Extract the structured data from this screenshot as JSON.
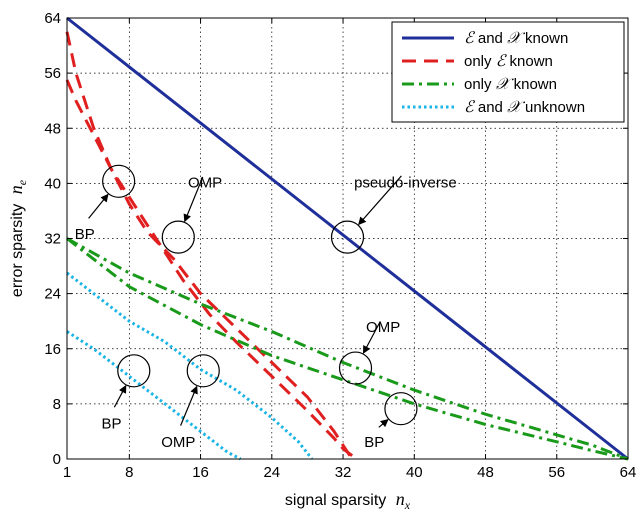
{
  "chart_data": {
    "type": "line",
    "xlabel": "signal sparsity",
    "xlabel_symbol": "n",
    "xlabel_sub": "x",
    "ylabel": "error sparsity",
    "ylabel_symbol": "n",
    "ylabel_sub": "e",
    "xlim": [
      1,
      64
    ],
    "ylim": [
      0,
      64
    ],
    "xticks": [
      1,
      8,
      16,
      24,
      32,
      40,
      48,
      56,
      64
    ],
    "yticks": [
      0,
      8,
      16,
      24,
      32,
      40,
      48,
      56,
      64
    ],
    "grid": true,
    "legend_position": "top-right",
    "series": [
      {
        "name": "E and X known",
        "legend_parts": [
          "ℰ",
          " and ",
          "𝒳",
          " known"
        ],
        "color": "#1f2f9a",
        "style": "solid",
        "curves": [
          [
            [
              1,
              64
            ],
            [
              64,
              0
            ]
          ]
        ]
      },
      {
        "name": "only E known",
        "legend_parts": [
          "only ",
          "ℰ",
          " known"
        ],
        "color": "#e02020",
        "style": "dashed",
        "curves": [
          [
            [
              1,
              62
            ],
            [
              2,
              56
            ],
            [
              4,
              48
            ],
            [
              6,
              42
            ],
            [
              8,
              37
            ],
            [
              10,
              33
            ],
            [
              13,
              29
            ],
            [
              16,
              24
            ],
            [
              20,
              19
            ],
            [
              24,
              14
            ],
            [
              28,
              9
            ],
            [
              31,
              4
            ],
            [
              32,
              2
            ],
            [
              33,
              0
            ]
          ],
          [
            [
              1,
              55
            ],
            [
              2,
              52
            ],
            [
              4,
              47
            ],
            [
              6,
              42
            ],
            [
              8,
              38
            ],
            [
              10,
              34
            ],
            [
              12,
              30
            ],
            [
              14,
              26
            ],
            [
              17,
              21
            ],
            [
              20,
              17
            ],
            [
              24,
              12
            ],
            [
              28,
              7
            ],
            [
              31,
              3
            ],
            [
              32,
              1.5
            ],
            [
              33.5,
              0
            ]
          ]
        ]
      },
      {
        "name": "only X known",
        "legend_parts": [
          "only ",
          "𝒳",
          " known"
        ],
        "color": "#1a9a1a",
        "style": "dashdot",
        "curves": [
          [
            [
              1,
              32
            ],
            [
              8,
              27
            ],
            [
              16,
              22.5
            ],
            [
              24,
              18.5
            ],
            [
              32,
              14
            ],
            [
              40,
              10
            ],
            [
              48,
              6.5
            ],
            [
              56,
              3.5
            ],
            [
              60,
              2
            ],
            [
              64,
              0
            ]
          ],
          [
            [
              1,
              32
            ],
            [
              8,
              25
            ],
            [
              16,
              19.5
            ],
            [
              24,
              15
            ],
            [
              32,
              11.5
            ],
            [
              40,
              8
            ],
            [
              48,
              5
            ],
            [
              56,
              2.5
            ],
            [
              60,
              1.2
            ],
            [
              64,
              0
            ]
          ]
        ]
      },
      {
        "name": "E and X unknown",
        "legend_parts": [
          "ℰ",
          " and ",
          "𝒳",
          " unknown"
        ],
        "color": "#19b4e6",
        "style": "dotted",
        "curves": [
          [
            [
              1,
              27
            ],
            [
              4,
              24
            ],
            [
              8,
              20
            ],
            [
              12,
              17
            ],
            [
              16,
              13
            ],
            [
              20,
              10
            ],
            [
              24,
              6
            ],
            [
              27,
              2.5
            ],
            [
              28.5,
              0
            ]
          ],
          [
            [
              1,
              18.5
            ],
            [
              4,
              16
            ],
            [
              8,
              12
            ],
            [
              12,
              8
            ],
            [
              16,
              4
            ],
            [
              19,
              1
            ],
            [
              20.5,
              0
            ]
          ]
        ]
      }
    ],
    "annotations": [
      {
        "text": "BP",
        "circle_at": [
          6.8,
          40.3
        ],
        "text_at": [
          3,
          32.5
        ]
      },
      {
        "text": "OMP",
        "circle_at": [
          13.5,
          32.2
        ],
        "text_at": [
          16.5,
          40
        ]
      },
      {
        "text": "pseudo-inverse",
        "circle_at": [
          32.5,
          32.2
        ],
        "text_at": [
          39,
          40
        ]
      },
      {
        "text": "OMP",
        "circle_at": [
          33.4,
          13.2
        ],
        "text_at": [
          36.5,
          19
        ]
      },
      {
        "text": "BP",
        "circle_at": [
          38.5,
          7.3
        ],
        "text_at": [
          35.5,
          2.3
        ]
      },
      {
        "text": "BP",
        "circle_at": [
          8.5,
          12.8
        ],
        "text_at": [
          6,
          5
        ]
      },
      {
        "text": "OMP",
        "circle_at": [
          16.3,
          12.8
        ],
        "text_at": [
          13.5,
          2.3
        ]
      }
    ]
  }
}
